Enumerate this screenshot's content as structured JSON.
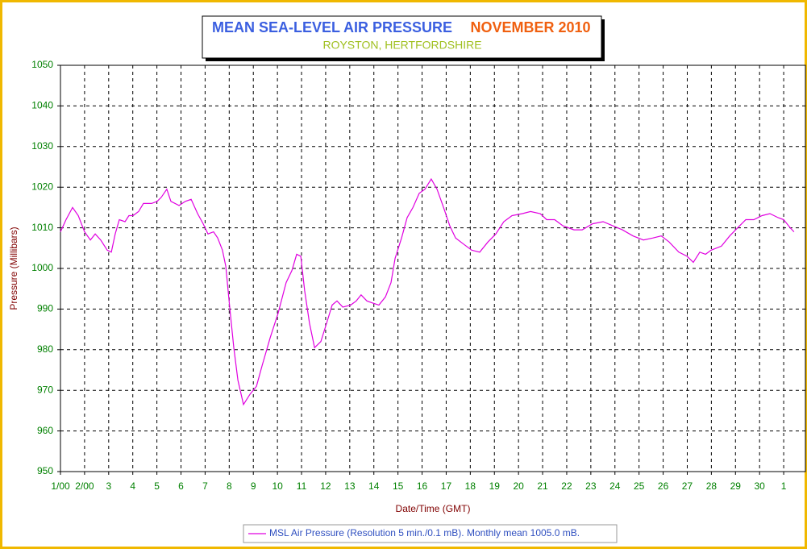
{
  "chart_data": {
    "type": "line",
    "title": "MEAN SEA-LEVEL AIR PRESSURE",
    "title_period": "NOVEMBER 2010",
    "subtitle": "ROYSTON, HERTFORDSHIRE",
    "x_label": "Date/Time (GMT)",
    "y_label": "Pressure (Millibars)",
    "xlim": [
      0,
      30.9
    ],
    "ylim": [
      950,
      1050
    ],
    "yticks": [
      950,
      960,
      970,
      980,
      990,
      1000,
      1010,
      1020,
      1030,
      1040,
      1050
    ],
    "xticks": [
      {
        "value": 0,
        "label": "1/00"
      },
      {
        "value": 1,
        "label": "2/00"
      },
      {
        "value": 2,
        "label": "3"
      },
      {
        "value": 3,
        "label": "4"
      },
      {
        "value": 4,
        "label": "5"
      },
      {
        "value": 5,
        "label": "6"
      },
      {
        "value": 6,
        "label": "7"
      },
      {
        "value": 7,
        "label": "8"
      },
      {
        "value": 8,
        "label": "9"
      },
      {
        "value": 9,
        "label": "10"
      },
      {
        "value": 10,
        "label": "11"
      },
      {
        "value": 11,
        "label": "12"
      },
      {
        "value": 12,
        "label": "13"
      },
      {
        "value": 13,
        "label": "14"
      },
      {
        "value": 14,
        "label": "15"
      },
      {
        "value": 15,
        "label": "16"
      },
      {
        "value": 16,
        "label": "17"
      },
      {
        "value": 17,
        "label": "18"
      },
      {
        "value": 18,
        "label": "19"
      },
      {
        "value": 19,
        "label": "20"
      },
      {
        "value": 20,
        "label": "21"
      },
      {
        "value": 21,
        "label": "22"
      },
      {
        "value": 22,
        "label": "23"
      },
      {
        "value": 23,
        "label": "24"
      },
      {
        "value": 24,
        "label": "25"
      },
      {
        "value": 25,
        "label": "26"
      },
      {
        "value": 26,
        "label": "27"
      },
      {
        "value": 27,
        "label": "28"
      },
      {
        "value": 28,
        "label": "29"
      },
      {
        "value": 29,
        "label": "30"
      },
      {
        "value": 30,
        "label": "1"
      }
    ],
    "grid": true,
    "series": [
      {
        "name": "MSL Air Pressure (Resolution 5 min./0.1 mB). Monthly mean 1005.0 mB.",
        "color": "#e000e0",
        "x": [
          0,
          0.23,
          0.5,
          0.74,
          1.0,
          1.24,
          1.44,
          1.67,
          1.94,
          2.11,
          2.27,
          2.44,
          2.68,
          2.84,
          3.01,
          3.24,
          3.44,
          3.78,
          4.01,
          4.18,
          4.41,
          4.58,
          4.92,
          5.18,
          5.42,
          5.69,
          5.92,
          6.12,
          6.35,
          6.52,
          6.72,
          6.86,
          7.02,
          7.19,
          7.36,
          7.59,
          7.86,
          8.13,
          8.36,
          8.7,
          9.03,
          9.36,
          9.6,
          9.8,
          9.97,
          10.13,
          10.33,
          10.54,
          10.8,
          11.04,
          11.27,
          11.47,
          11.71,
          12.04,
          12.27,
          12.47,
          12.71,
          12.94,
          13.21,
          13.48,
          13.71,
          13.88,
          14.15,
          14.38,
          14.62,
          14.88,
          15.12,
          15.38,
          15.62,
          15.89,
          16.15,
          16.39,
          16.72,
          17.06,
          17.39,
          17.73,
          18.06,
          18.39,
          18.73,
          19.16,
          19.5,
          19.9,
          20.17,
          20.5,
          20.84,
          21.3,
          21.64,
          22.07,
          22.51,
          22.91,
          23.31,
          23.75,
          24.18,
          24.58,
          24.92,
          25.25,
          25.65,
          25.99,
          26.25,
          26.52,
          26.76,
          26.99,
          27.42,
          27.76,
          28.09,
          28.43,
          28.76,
          29.1,
          29.43,
          29.77,
          30.0,
          30.27,
          30.43
        ],
        "values": [
          1009,
          1012,
          1015,
          1013,
          1009,
          1007,
          1008.5,
          1007,
          1004.5,
          1004,
          1008.5,
          1012,
          1011.5,
          1013,
          1013,
          1014,
          1016,
          1016,
          1016.5,
          1017.5,
          1019.5,
          1016.5,
          1015.5,
          1016.5,
          1017,
          1013.5,
          1011,
          1008.5,
          1009,
          1007.5,
          1004.5,
          1000.5,
          990.5,
          980.5,
          972.5,
          966.5,
          969,
          971,
          976,
          983,
          989,
          996.5,
          999.5,
          1003.5,
          1003,
          994.5,
          986.5,
          980.5,
          982,
          986.5,
          991,
          992,
          990.5,
          991,
          992,
          993.5,
          992,
          991.5,
          991,
          993,
          996.5,
          1002.5,
          1007.5,
          1012.5,
          1015,
          1018.5,
          1019.5,
          1022,
          1019.5,
          1015,
          1010.5,
          1007.5,
          1006,
          1004.5,
          1004,
          1006.5,
          1008.5,
          1011.5,
          1013,
          1013.5,
          1014,
          1013.5,
          1012,
          1012,
          1010.5,
          1009.5,
          1009.5,
          1011,
          1011.5,
          1010.5,
          1009.5,
          1008,
          1007,
          1007.5,
          1008,
          1006.5,
          1004,
          1003,
          1001.5,
          1004,
          1003.5,
          1004.5,
          1005.5,
          1008,
          1010,
          1012,
          1012,
          1013,
          1013.5,
          1012.5,
          1012,
          1010,
          1009
        ]
      }
    ]
  }
}
